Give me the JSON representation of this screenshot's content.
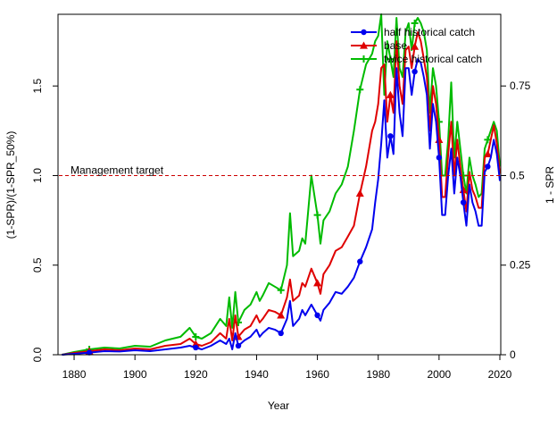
{
  "chart_data": {
    "type": "line",
    "xlabel": "Year",
    "ylabel": "(1-SPR)/(1-SPR_50%)",
    "ylabel_right": "1 - SPR",
    "xlim": [
      1875,
      2020
    ],
    "ylim": [
      0,
      1.9
    ],
    "ylim_right": [
      0,
      0.95
    ],
    "x_ticks": [
      1880,
      1900,
      1920,
      1940,
      1960,
      1980,
      2000,
      2020
    ],
    "y_ticks": [
      0.0,
      0.5,
      1.0,
      1.5
    ],
    "y_ticks_right": [
      0,
      0.25,
      0.5,
      0.75
    ],
    "legend_position": "top-right",
    "reference_line": {
      "y": 1.0,
      "label": "Management target",
      "color": "#CC0000",
      "style": "dashed"
    },
    "series": [
      {
        "name": "half historical catch",
        "color": "#0000EE",
        "marker": "circle",
        "x": [
          1876,
          1880,
          1885,
          1890,
          1895,
          1900,
          1905,
          1910,
          1915,
          1918,
          1920,
          1922,
          1925,
          1928,
          1930,
          1931,
          1932,
          1933,
          1934,
          1936,
          1938,
          1940,
          1941,
          1942,
          1944,
          1946,
          1948,
          1950,
          1951,
          1952,
          1954,
          1955,
          1956,
          1958,
          1960,
          1961,
          1962,
          1964,
          1966,
          1968,
          1970,
          1972,
          1974,
          1976,
          1978,
          1979,
          1980,
          1981,
          1982,
          1983,
          1984,
          1985,
          1986,
          1987,
          1988,
          1989,
          1990,
          1991,
          1992,
          1993,
          1994,
          1995,
          1996,
          1997,
          1998,
          1999,
          2000,
          2001,
          2002,
          2003,
          2004,
          2005,
          2006,
          2007,
          2008,
          2009,
          2010,
          2011,
          2012,
          2013,
          2014,
          2015,
          2016,
          2017,
          2018,
          2019,
          2020
        ],
        "y": [
          0.0,
          0.005,
          0.012,
          0.02,
          0.018,
          0.025,
          0.02,
          0.03,
          0.04,
          0.05,
          0.04,
          0.03,
          0.05,
          0.08,
          0.06,
          0.09,
          0.03,
          0.12,
          0.05,
          0.08,
          0.1,
          0.14,
          0.1,
          0.12,
          0.15,
          0.14,
          0.12,
          0.2,
          0.3,
          0.16,
          0.2,
          0.25,
          0.22,
          0.28,
          0.22,
          0.19,
          0.25,
          0.29,
          0.35,
          0.34,
          0.38,
          0.43,
          0.52,
          0.6,
          0.7,
          0.85,
          0.98,
          1.18,
          1.42,
          1.1,
          1.22,
          1.12,
          1.6,
          1.35,
          1.22,
          1.6,
          1.6,
          1.45,
          1.58,
          1.65,
          1.63,
          1.55,
          1.45,
          1.15,
          1.4,
          1.3,
          1.1,
          0.78,
          0.78,
          1.0,
          1.15,
          0.9,
          1.1,
          1.0,
          0.85,
          0.72,
          0.95,
          0.85,
          0.8,
          0.72,
          0.72,
          1.02,
          1.05,
          1.1,
          1.2,
          1.12,
          0.97
        ]
      },
      {
        "name": "base",
        "color": "#DF0000",
        "marker": "triangle",
        "x": [
          1876,
          1880,
          1885,
          1890,
          1895,
          1900,
          1905,
          1910,
          1915,
          1918,
          1920,
          1922,
          1925,
          1928,
          1930,
          1931,
          1932,
          1933,
          1934,
          1936,
          1938,
          1940,
          1941,
          1942,
          1944,
          1946,
          1948,
          1950,
          1951,
          1952,
          1954,
          1955,
          1956,
          1958,
          1960,
          1961,
          1962,
          1964,
          1966,
          1968,
          1970,
          1972,
          1974,
          1976,
          1978,
          1979,
          1980,
          1981,
          1982,
          1983,
          1984,
          1985,
          1986,
          1987,
          1988,
          1989,
          1990,
          1991,
          1992,
          1993,
          1994,
          1995,
          1996,
          1997,
          1998,
          1999,
          2000,
          2001,
          2002,
          2003,
          2004,
          2005,
          2006,
          2007,
          2008,
          2009,
          2010,
          2011,
          2012,
          2013,
          2014,
          2015,
          2016,
          2017,
          2018,
          2019,
          2020
        ],
        "y": [
          0.0,
          0.01,
          0.02,
          0.03,
          0.025,
          0.035,
          0.03,
          0.05,
          0.06,
          0.09,
          0.06,
          0.05,
          0.07,
          0.12,
          0.09,
          0.2,
          0.08,
          0.22,
          0.1,
          0.14,
          0.16,
          0.22,
          0.18,
          0.2,
          0.25,
          0.24,
          0.22,
          0.32,
          0.42,
          0.3,
          0.33,
          0.4,
          0.38,
          0.48,
          0.4,
          0.34,
          0.45,
          0.5,
          0.58,
          0.6,
          0.66,
          0.72,
          0.9,
          1.05,
          1.25,
          1.3,
          1.4,
          1.6,
          1.62,
          1.3,
          1.45,
          1.35,
          1.75,
          1.5,
          1.4,
          1.7,
          1.72,
          1.6,
          1.72,
          1.8,
          1.75,
          1.65,
          1.55,
          1.25,
          1.5,
          1.4,
          1.2,
          0.88,
          0.88,
          1.12,
          1.3,
          1.0,
          1.2,
          1.05,
          0.92,
          0.8,
          1.02,
          0.92,
          0.88,
          0.82,
          0.82,
          1.1,
          1.12,
          1.2,
          1.28,
          1.18,
          1.01
        ]
      },
      {
        "name": "twice historical catch",
        "color": "#00BB00",
        "marker": "plus",
        "x": [
          1876,
          1880,
          1885,
          1890,
          1895,
          1900,
          1905,
          1910,
          1915,
          1918,
          1920,
          1922,
          1925,
          1928,
          1930,
          1931,
          1932,
          1933,
          1934,
          1936,
          1938,
          1940,
          1941,
          1942,
          1944,
          1946,
          1948,
          1950,
          1951,
          1952,
          1954,
          1955,
          1956,
          1958,
          1960,
          1961,
          1962,
          1964,
          1966,
          1968,
          1970,
          1972,
          1974,
          1976,
          1978,
          1979,
          1980,
          1981,
          1982,
          1983,
          1984,
          1985,
          1986,
          1987,
          1988,
          1989,
          1990,
          1991,
          1992,
          1993,
          1994,
          1995,
          1996,
          1997,
          1998,
          1999,
          2000,
          2001,
          2002,
          2003,
          2004,
          2005,
          2006,
          2007,
          2008,
          2009,
          2010,
          2011,
          2012,
          2013,
          2014,
          2015,
          2016,
          2017,
          2018,
          2019,
          2020
        ],
        "y": [
          0.0,
          0.015,
          0.03,
          0.04,
          0.035,
          0.05,
          0.045,
          0.08,
          0.1,
          0.15,
          0.1,
          0.09,
          0.12,
          0.2,
          0.16,
          0.32,
          0.15,
          0.35,
          0.18,
          0.25,
          0.28,
          0.35,
          0.3,
          0.33,
          0.4,
          0.38,
          0.36,
          0.5,
          0.79,
          0.55,
          0.58,
          0.65,
          0.62,
          1.0,
          0.78,
          0.62,
          0.75,
          0.8,
          0.9,
          0.95,
          1.05,
          1.25,
          1.48,
          1.62,
          1.68,
          1.75,
          1.78,
          1.9,
          1.45,
          1.75,
          1.65,
          1.55,
          1.88,
          1.6,
          1.55,
          1.8,
          1.85,
          1.7,
          1.85,
          1.88,
          1.85,
          1.8,
          1.7,
          1.35,
          1.6,
          1.5,
          1.3,
          1.0,
          1.0,
          1.2,
          1.52,
          1.1,
          1.3,
          1.15,
          1.0,
          0.9,
          1.1,
          1.0,
          0.95,
          0.88,
          0.9,
          1.15,
          1.2,
          1.25,
          1.3,
          1.25,
          1.05
        ]
      }
    ]
  }
}
